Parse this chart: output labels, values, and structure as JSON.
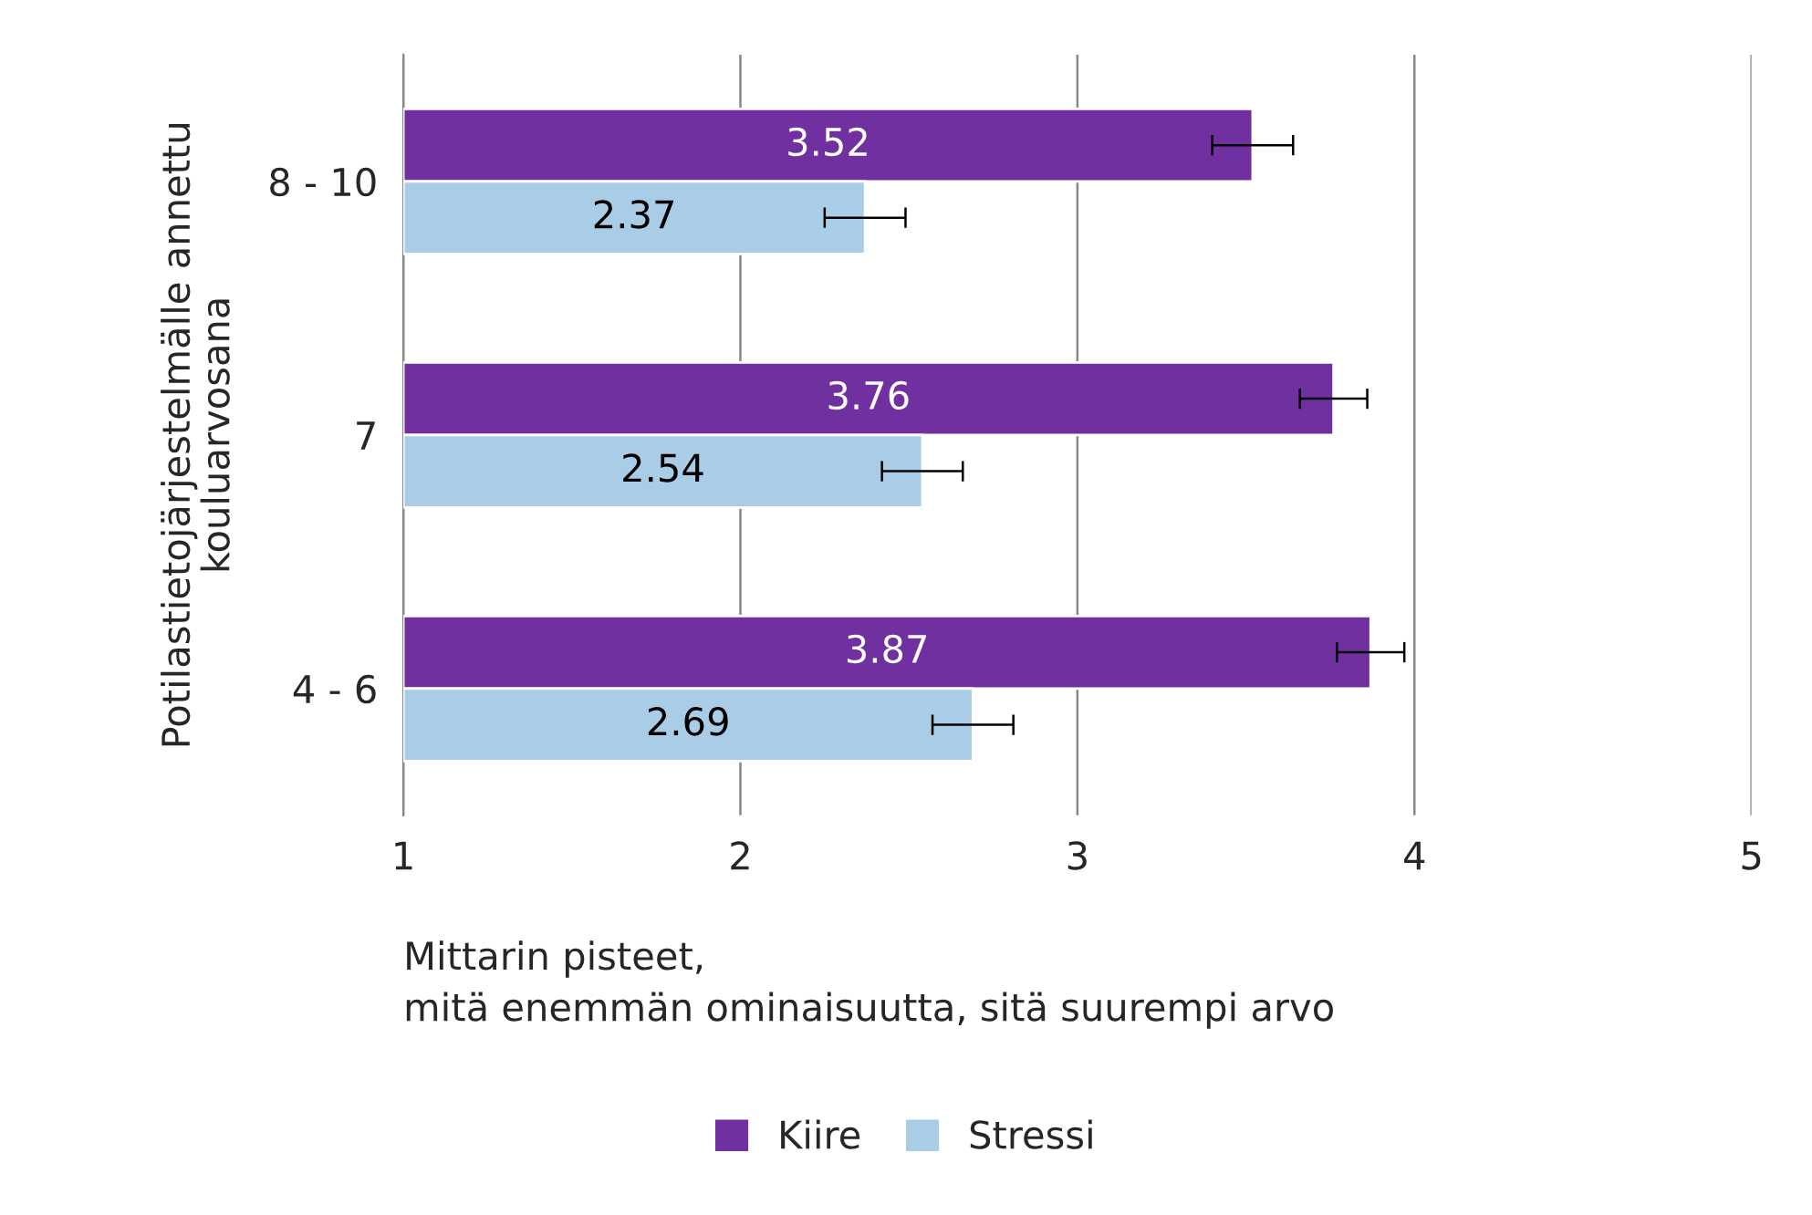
{
  "chart_data": {
    "type": "bar",
    "orientation": "horizontal",
    "categories": [
      "8 - 10",
      "7",
      "4 - 6"
    ],
    "series": [
      {
        "name": "Kiire",
        "color": "#7030a0",
        "values": [
          3.52,
          3.76,
          3.87
        ],
        "errors": [
          0.12,
          0.1,
          0.1
        ]
      },
      {
        "name": "Stressi",
        "color": "#a9cde6",
        "values": [
          2.37,
          2.54,
          2.69
        ],
        "errors": [
          0.12,
          0.12,
          0.12
        ]
      }
    ],
    "xlim": [
      1,
      5
    ],
    "xticks": [
      1,
      2,
      3,
      4,
      5
    ],
    "xlabel": "Mittarin pisteet,\nmitä enemmän ominaisuutta, sitä suurempi arvo",
    "ylabel": "Potilastietojärjestelmälle annettu\nkouluarvosana",
    "data_labels": true,
    "grid": "x",
    "legend": "bottom"
  }
}
